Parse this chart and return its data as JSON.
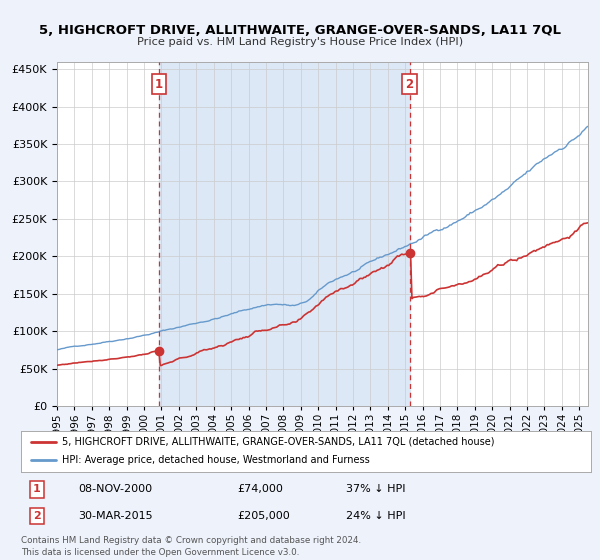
{
  "title": "5, HIGHCROFT DRIVE, ALLITHWAITE, GRANGE-OVER-SANDS, LA11 7QL",
  "subtitle": "Price paid vs. HM Land Registry's House Price Index (HPI)",
  "xlim": [
    1995.0,
    2025.5
  ],
  "ylim": [
    0,
    460000
  ],
  "yticks": [
    0,
    50000,
    100000,
    150000,
    200000,
    250000,
    300000,
    350000,
    400000,
    450000
  ],
  "xtick_years": [
    1995,
    1996,
    1997,
    1998,
    1999,
    2000,
    2001,
    2002,
    2003,
    2004,
    2005,
    2006,
    2007,
    2008,
    2009,
    2010,
    2011,
    2012,
    2013,
    2014,
    2015,
    2016,
    2017,
    2018,
    2019,
    2020,
    2021,
    2022,
    2023,
    2024,
    2025
  ],
  "hpi_color": "#6699cc",
  "price_color": "#cc3333",
  "marker_color": "#cc3333",
  "sale1_x": 2000.86,
  "sale1_y": 74000,
  "sale1_label": "1",
  "sale1_date": "08-NOV-2000",
  "sale1_price": "£74,000",
  "sale1_pct": "37% ↓ HPI",
  "sale2_x": 2015.25,
  "sale2_y": 205000,
  "sale2_label": "2",
  "sale2_date": "30-MAR-2015",
  "sale2_price": "£205,000",
  "sale2_pct": "24% ↓ HPI",
  "legend_line1": "5, HIGHCROFT DRIVE, ALLITHWAITE, GRANGE-OVER-SANDS, LA11 7QL (detached house)",
  "legend_line2": "HPI: Average price, detached house, Westmorland and Furness",
  "footer1": "Contains HM Land Registry data © Crown copyright and database right 2024.",
  "footer2": "This data is licensed under the Open Government Licence v3.0.",
  "background_color": "#eef2fb",
  "plot_bg_color": "#ffffff",
  "grid_color": "#cccccc",
  "span_color": "#dce8f5"
}
